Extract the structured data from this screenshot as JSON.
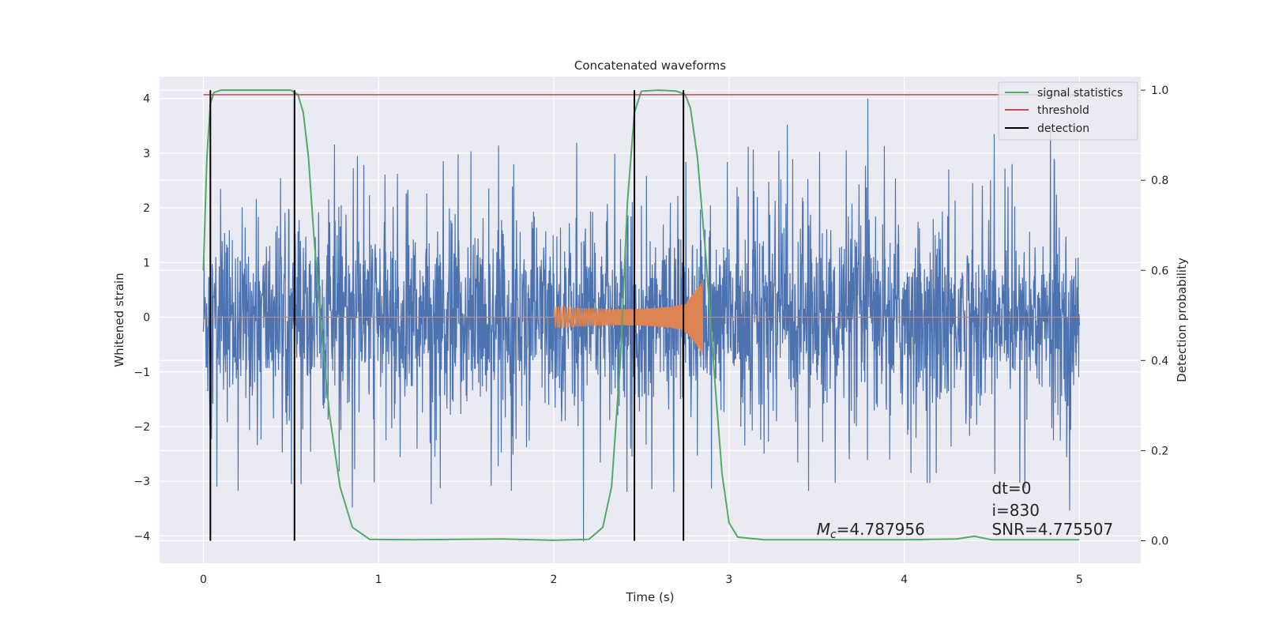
{
  "chart_data": {
    "type": "line",
    "title": "Concatenated waveforms",
    "xlabel": "Time (s)",
    "ylabel": "Whitened strain",
    "y2label": "Detection probability",
    "xlim": [
      -0.25,
      5.35
    ],
    "ylim": [
      -4.5,
      4.4
    ],
    "y2lim": [
      -0.05,
      1.03
    ],
    "xticks": [
      "0",
      "1",
      "2",
      "3",
      "4",
      "5"
    ],
    "yticks": [
      "4",
      "3",
      "2",
      "1",
      "0",
      "−1",
      "−2",
      "−3",
      "−4"
    ],
    "y2ticks": [
      "1.0",
      "0.8",
      "0.6",
      "0.4",
      "0.2",
      "0.0"
    ],
    "grid": true,
    "legend_position": "top-right",
    "colors": {
      "strain": "#4c72b0",
      "template": "#dd8452",
      "signal": "#55a868",
      "threshold": "#c44e52",
      "detection": "#000000",
      "background": "#eaeaf2"
    },
    "strain": {
      "x_range": [
        0,
        5
      ],
      "approx_amplitude": 1.3,
      "spike_max": 4.0,
      "spike_min": -4.1
    },
    "template": {
      "x_range": [
        2.0,
        2.85
      ],
      "envelope_start": 0.15,
      "envelope_end": 0.7
    },
    "series": [
      {
        "name": "signal statistics",
        "axis": "right",
        "x": [
          0.0,
          0.02,
          0.04,
          0.06,
          0.1,
          0.3,
          0.5,
          0.54,
          0.57,
          0.6,
          0.63,
          0.67,
          0.72,
          0.78,
          0.85,
          0.95,
          1.2,
          1.7,
          2.0,
          2.2,
          2.28,
          2.33,
          2.38,
          2.42,
          2.46,
          2.5,
          2.6,
          2.7,
          2.75,
          2.78,
          2.82,
          2.87,
          2.92,
          2.96,
          3.0,
          3.05,
          3.2,
          4.0,
          4.3,
          4.4,
          4.5,
          5.0
        ],
        "y": [
          0.6,
          0.85,
          0.97,
          0.995,
          1.0,
          1.0,
          1.0,
          0.99,
          0.95,
          0.85,
          0.68,
          0.48,
          0.28,
          0.12,
          0.03,
          0.003,
          0.002,
          0.004,
          0.001,
          0.003,
          0.03,
          0.12,
          0.4,
          0.75,
          0.95,
          0.998,
          1.0,
          0.998,
          0.99,
          0.96,
          0.85,
          0.62,
          0.35,
          0.15,
          0.04,
          0.008,
          0.002,
          0.002,
          0.004,
          0.01,
          0.002,
          0.002
        ]
      },
      {
        "name": "threshold",
        "axis": "right",
        "x": [
          0.0,
          5.0
        ],
        "y": [
          0.99,
          0.99
        ]
      },
      {
        "name": "detection",
        "axis": "right",
        "x_values": [
          0.04,
          0.52,
          2.46,
          2.74
        ],
        "y_range": [
          0.0,
          1.0
        ]
      }
    ],
    "annotations": [
      {
        "id": "mc",
        "prefix": "M",
        "subscript": "c",
        "text": "=4.787956",
        "x": 3.5,
        "y": -3.98
      },
      {
        "id": "dt",
        "text": "dt=0",
        "x": 4.5,
        "y": -3.23
      },
      {
        "id": "i",
        "text": "i=830",
        "x": 4.5,
        "y": -3.63
      },
      {
        "id": "snr",
        "text": "SNR=4.775507",
        "x": 4.5,
        "y": -3.98
      }
    ]
  }
}
